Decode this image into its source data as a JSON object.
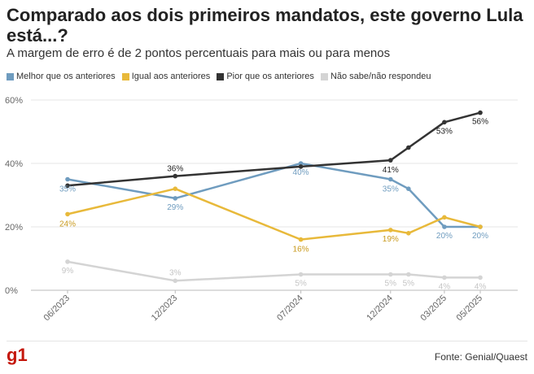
{
  "header": {
    "title": "Comparado aos dois primeiros mandatos, este governo Lula está...?",
    "subtitle": "A margem de erro é de 2 pontos percentuais para mais ou para menos"
  },
  "footer": {
    "logo": "g1",
    "source": "Fonte: Genial/Quaest"
  },
  "chart_data": {
    "type": "line",
    "x_dates": [
      "2023-06",
      "2023-12",
      "2024-07",
      "2024-12",
      "2025-01",
      "2025-03",
      "2025-05"
    ],
    "x_tick_labels": [
      "06/2023",
      "12/2023",
      "07/2024",
      "12/2024",
      "03/2025",
      "05/2025"
    ],
    "x_tick_dates": [
      "2023-06",
      "2023-12",
      "2024-07",
      "2024-12",
      "2025-03",
      "2025-05"
    ],
    "y_ticks": [
      0,
      20,
      40,
      60
    ],
    "y_tick_labels": [
      "0%",
      "20%",
      "40%",
      "60%"
    ],
    "ylim": [
      0,
      60
    ],
    "grid": true,
    "legend_position": "top-left",
    "series": [
      {
        "name": "Melhor que os anteriores",
        "color": "#6f9cbf",
        "values": [
          35,
          29,
          40,
          35,
          32,
          20,
          20
        ],
        "labels": [
          "35%",
          "29%",
          "40%",
          "35%",
          "",
          "20%",
          "20%"
        ]
      },
      {
        "name": "Igual aos anteriores",
        "color": "#e8b93a",
        "values": [
          24,
          32,
          16,
          19,
          18,
          23,
          20
        ],
        "labels": [
          "24%",
          "",
          "16%",
          "19%",
          "",
          "",
          ""
        ]
      },
      {
        "name": "Pior que os anteriores",
        "color": "#333333",
        "values": [
          33,
          36,
          39,
          41,
          45,
          53,
          56
        ],
        "labels": [
          "",
          "36%",
          "",
          "41%",
          "",
          "53%",
          "56%"
        ]
      },
      {
        "name": "Não sabe/não respondeu",
        "color": "#d4d4d4",
        "values": [
          9,
          3,
          5,
          5,
          5,
          4,
          4
        ],
        "labels": [
          "9%",
          "3%",
          "5%",
          "5%",
          "5%",
          "4%",
          "4%"
        ]
      }
    ]
  }
}
